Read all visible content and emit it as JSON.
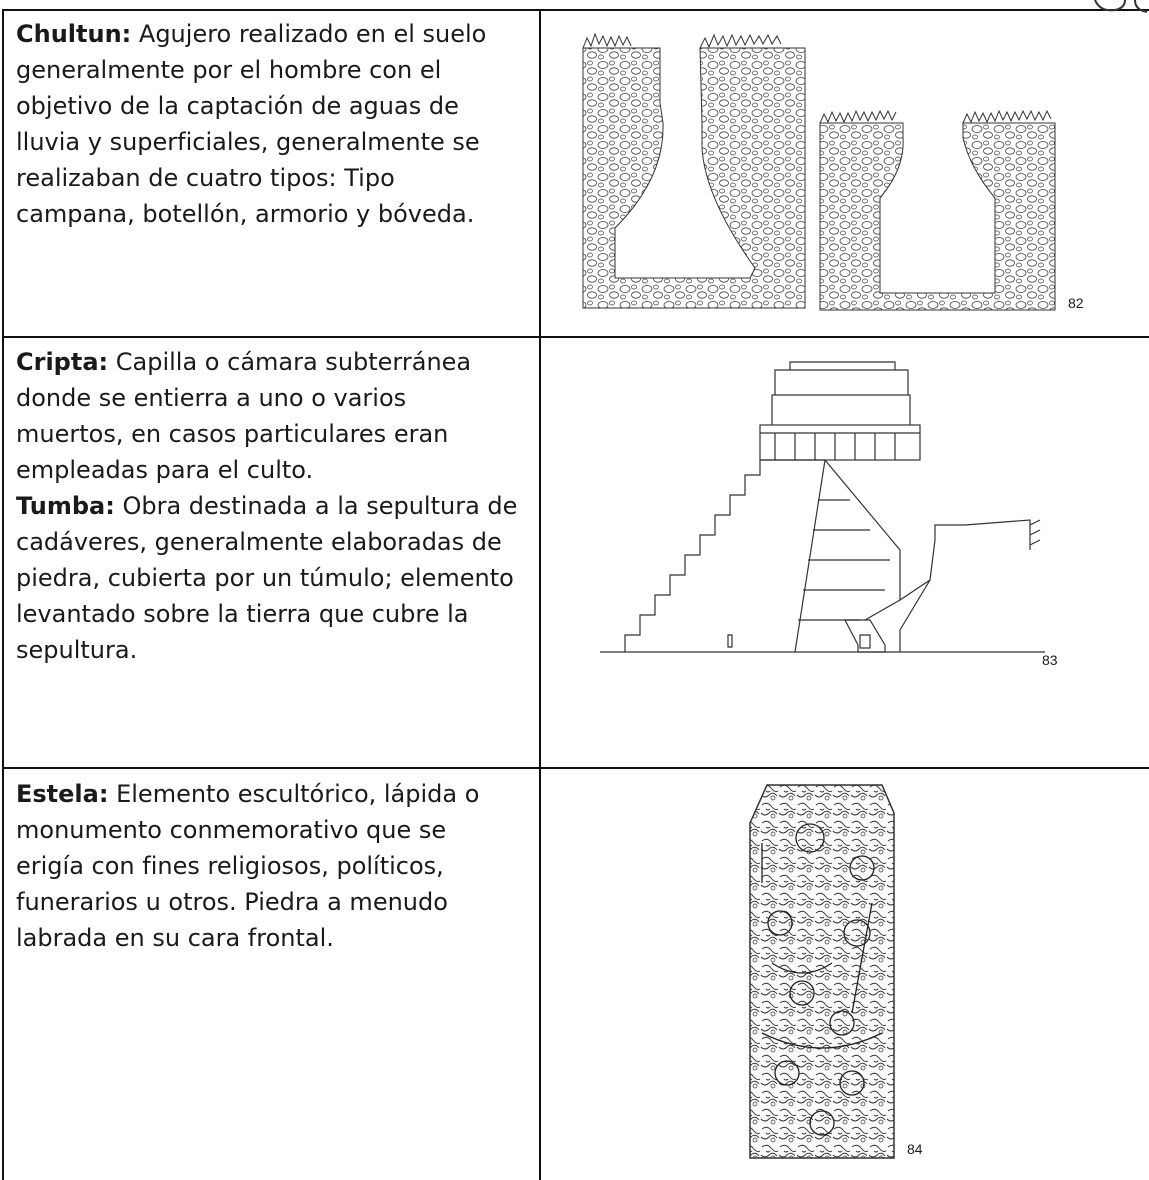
{
  "table": {
    "rows": [
      {
        "entries": [
          {
            "term": "Chultun:",
            "definition": "Agujero realizado en el suelo generalmente por el hombre con el objetivo de la captación de aguas de lluvia y superficiales, generalmente se realizaban de cuatro tipos: Tipo campana, botellón, armorio y bóveda."
          }
        ],
        "image_number": 82
      },
      {
        "entries": [
          {
            "term": "Cripta:",
            "definition": "Capilla o cámara subterránea donde se entierra a uno o varios muertos, en casos particulares eran empleadas para el culto."
          },
          {
            "term": "Tumba:",
            "definition": "Obra destinada a la sepultura de cadáveres, generalmente elaboradas de piedra, cubierta por un túmulo; elemento levantado sobre la tierra que cubre la sepultura."
          }
        ],
        "image_number": 83
      },
      {
        "entries": [
          {
            "term": "Estela:",
            "definition": "Elemento escultórico, lápida o monumento conmemorativo que se erigía con fines religiosos, políticos, funerarios u otros. Piedra a menudo labrada en su cara frontal."
          }
        ],
        "image_number": 84
      }
    ]
  }
}
